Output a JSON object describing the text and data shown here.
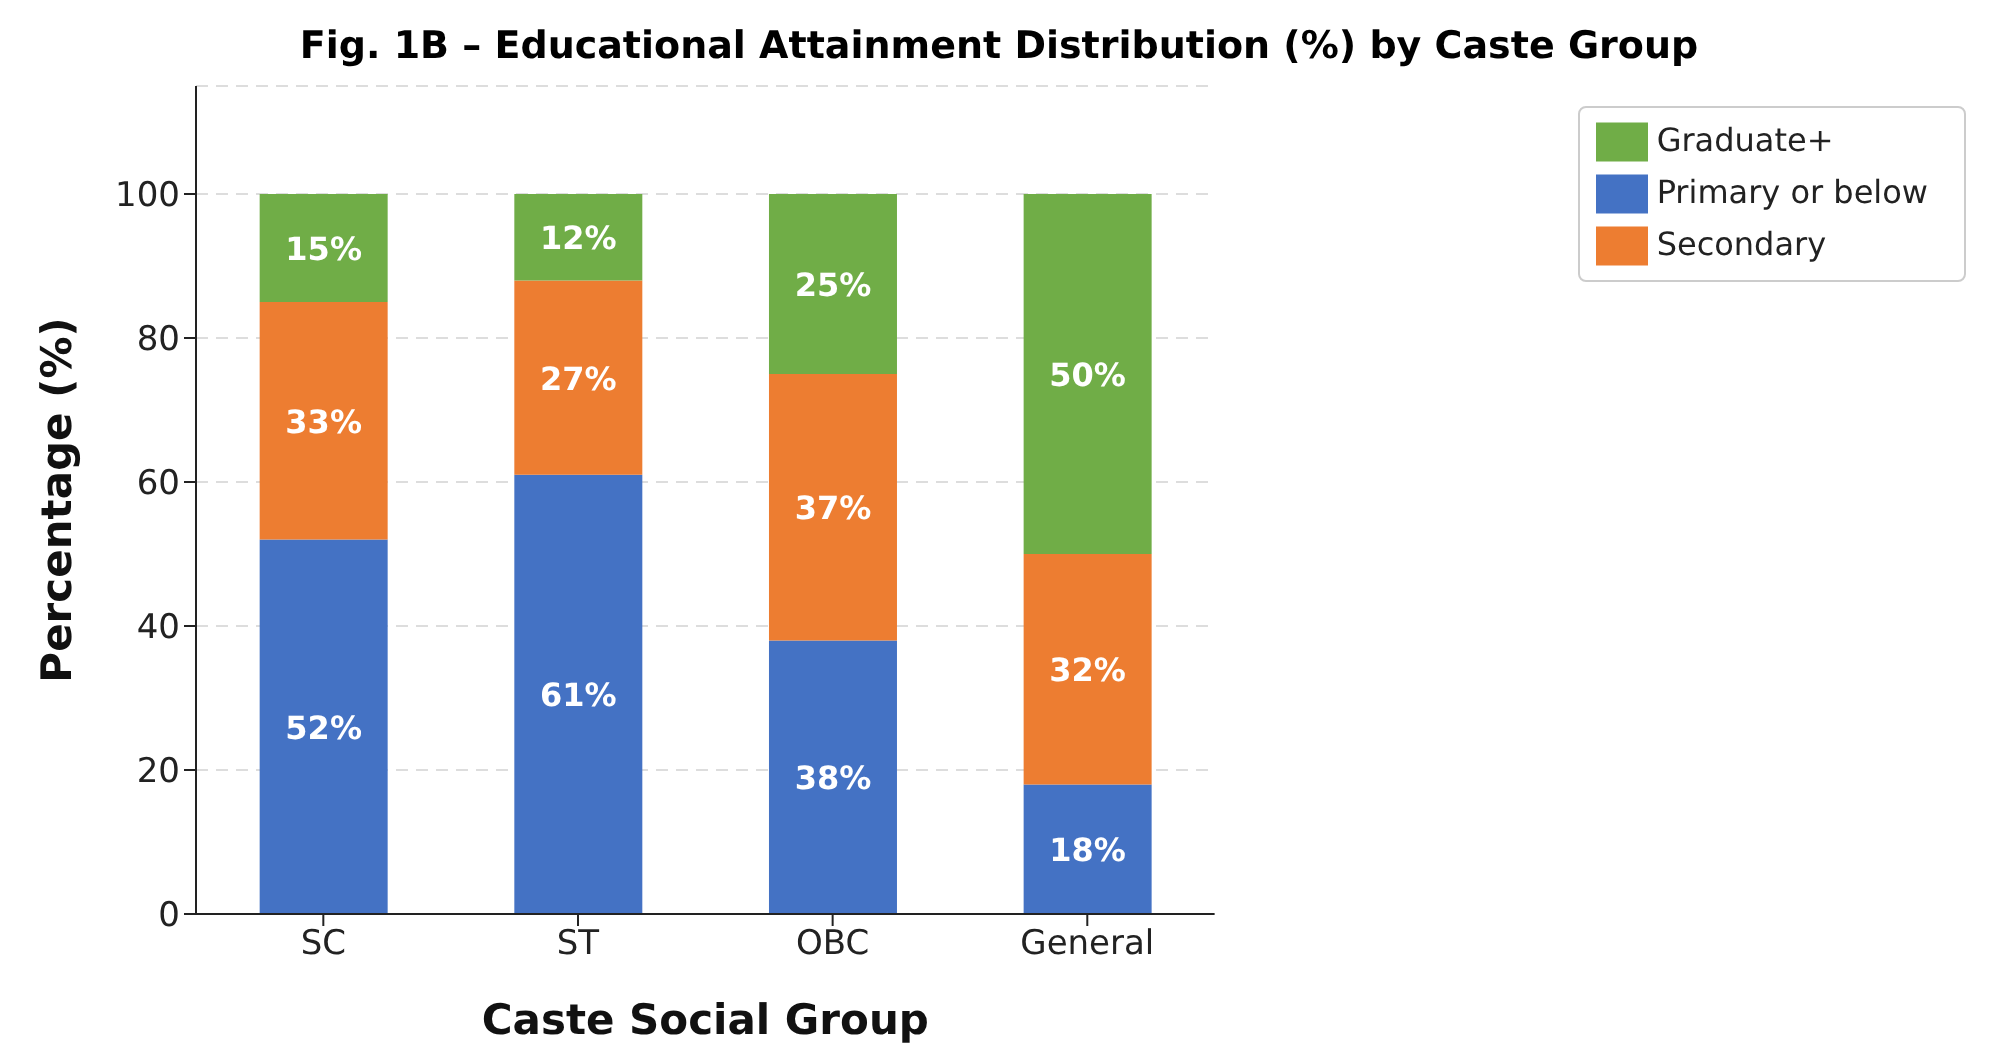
{
  "chart_data": {
    "type": "bar",
    "title": "Fig. 1B – Educational Attainment Distribution (%) by Caste Group",
    "xlabel": "Caste Social Group",
    "ylabel": "Percentage (%)",
    "categories": [
      "SC",
      "ST",
      "OBC",
      "General"
    ],
    "stacked": true,
    "series": [
      {
        "name": "Primary or below",
        "color": "#4472c4",
        "values": [
          52,
          61,
          38,
          18
        ],
        "value_labels": [
          "52%",
          "61%",
          "38%",
          "18%"
        ]
      },
      {
        "name": "Secondary",
        "color": "#ed7d31",
        "values": [
          33,
          27,
          37,
          32
        ],
        "value_labels": [
          "33%",
          "27%",
          "37%",
          "32%"
        ]
      },
      {
        "name": "Graduate+",
        "color": "#70ad47",
        "values": [
          15,
          12,
          25,
          50
        ],
        "value_labels": [
          "15%",
          "12%",
          "25%",
          "50%"
        ]
      }
    ],
    "ylim": [
      0,
      115
    ],
    "yticks": [
      0,
      20,
      40,
      60,
      80,
      100
    ],
    "grid": "y",
    "legend": "top right"
  }
}
